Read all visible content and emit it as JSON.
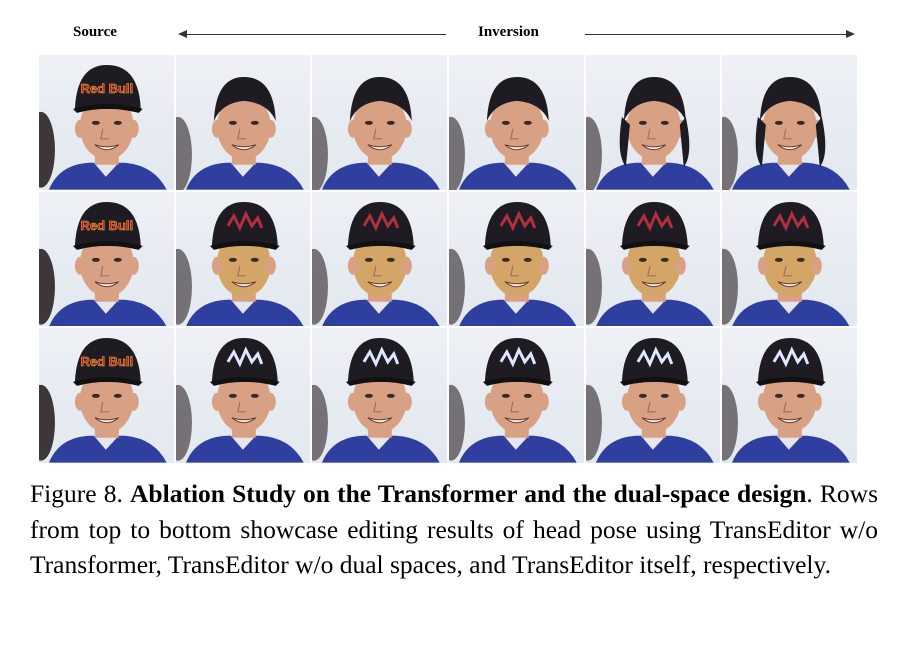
{
  "header": {
    "source_label": "Source",
    "inversion_label": "Inversion"
  },
  "grid": {
    "rows": [
      {
        "cap_logo": "Red Bull",
        "cells": [
          "source-redbull",
          "inversion-1",
          "inversion-2",
          "inversion-3",
          "inversion-4",
          "inversion-5"
        ]
      },
      {
        "cap_logo": "Red Bull",
        "cells": [
          "source-redbull",
          "inversion-1",
          "inversion-2",
          "inversion-3",
          "inversion-4",
          "inversion-5"
        ]
      },
      {
        "cap_logo": "Red Bull",
        "cells": [
          "source-redbull",
          "inversion-1",
          "inversion-2",
          "inversion-3",
          "inversion-4",
          "inversion-5"
        ]
      }
    ]
  },
  "caption": {
    "figure_label": "Figure 8.",
    "title": "Ablation Study on the Transformer and the dual-space design",
    "body": ". Rows from top to bottom showcase editing results of head pose using TransEditor w/o Transformer, TransEditor w/o dual spaces, and TransEditor itself, respectively."
  },
  "colors": {
    "skin": "#d9a184",
    "cap": "#1e1c22",
    "shirt": "#2f3fa0",
    "background": "#e9edf3",
    "logo_red": "#c8102e",
    "logo_yellow": "#f2c230"
  }
}
